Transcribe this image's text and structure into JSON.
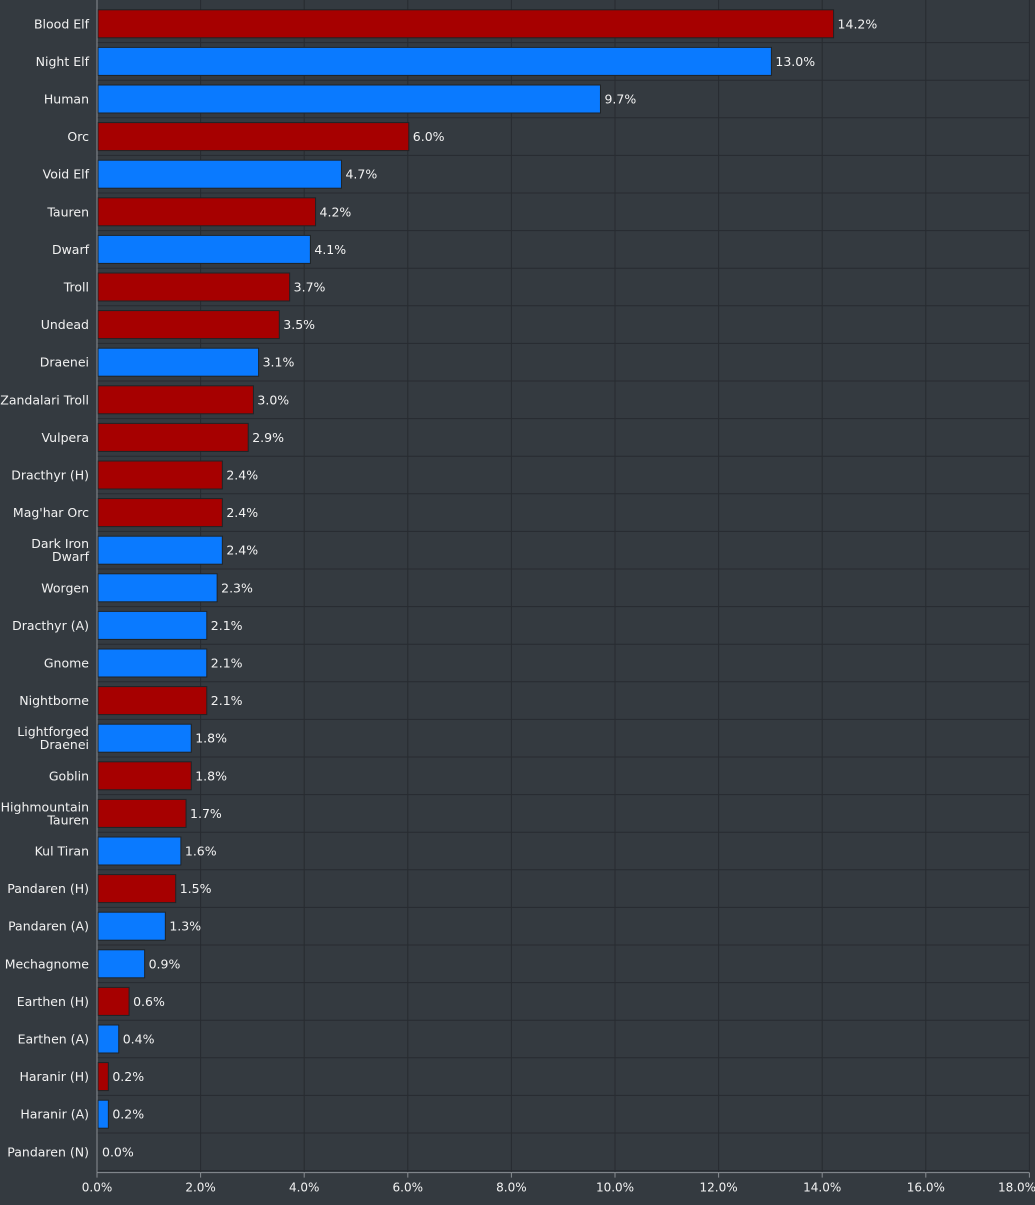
{
  "chart_data": {
    "type": "bar",
    "orientation": "horizontal",
    "title": "",
    "xlabel": "",
    "ylabel": "",
    "xlim": [
      0,
      18
    ],
    "x_ticks": [
      "0.0%",
      "2.0%",
      "4.0%",
      "6.0%",
      "8.0%",
      "10.0%",
      "12.0%",
      "14.0%",
      "16.0%",
      "18.0%"
    ],
    "grid": true,
    "legend": "none",
    "colors": {
      "horde": "#a60000",
      "alliance": "#0a7aff",
      "neutral": "#a60000",
      "background": "#343a40",
      "grid": "#272b30",
      "text": "#f2f2f2"
    },
    "categories": [
      [
        "Blood Elf"
      ],
      [
        "Night Elf"
      ],
      [
        "Human"
      ],
      [
        "Orc"
      ],
      [
        "Void Elf"
      ],
      [
        "Tauren"
      ],
      [
        "Dwarf"
      ],
      [
        "Troll"
      ],
      [
        "Undead"
      ],
      [
        "Draenei"
      ],
      [
        "Zandalari Troll"
      ],
      [
        "Vulpera"
      ],
      [
        "Dracthyr (H)"
      ],
      [
        "Mag'har Orc"
      ],
      [
        "Dark Iron",
        "Dwarf"
      ],
      [
        "Worgen"
      ],
      [
        "Dracthyr (A)"
      ],
      [
        "Gnome"
      ],
      [
        "Nightborne"
      ],
      [
        "Lightforged",
        "Draenei"
      ],
      [
        "Goblin"
      ],
      [
        "Highmountain",
        "Tauren"
      ],
      [
        "Kul Tiran"
      ],
      [
        "Pandaren (H)"
      ],
      [
        "Pandaren (A)"
      ],
      [
        "Mechagnome"
      ],
      [
        "Earthen (H)"
      ],
      [
        "Earthen (A)"
      ],
      [
        "Haranir (H)"
      ],
      [
        "Haranir (A)"
      ],
      [
        "Pandaren (N)"
      ]
    ],
    "values": [
      14.2,
      13.0,
      9.7,
      6.0,
      4.7,
      4.2,
      4.1,
      3.7,
      3.5,
      3.1,
      3.0,
      2.9,
      2.4,
      2.4,
      2.4,
      2.3,
      2.1,
      2.1,
      2.1,
      1.8,
      1.8,
      1.7,
      1.6,
      1.5,
      1.3,
      0.9,
      0.6,
      0.4,
      0.2,
      0.2,
      0.0
    ],
    "value_labels": [
      "14.2%",
      "13.0%",
      "9.7%",
      "6.0%",
      "4.7%",
      "4.2%",
      "4.1%",
      "3.7%",
      "3.5%",
      "3.1%",
      "3.0%",
      "2.9%",
      "2.4%",
      "2.4%",
      "2.4%",
      "2.3%",
      "2.1%",
      "2.1%",
      "2.1%",
      "1.8%",
      "1.8%",
      "1.7%",
      "1.6%",
      "1.5%",
      "1.3%",
      "0.9%",
      "0.6%",
      "0.4%",
      "0.2%",
      "0.2%",
      "0.0%"
    ],
    "factions": [
      "horde",
      "alliance",
      "alliance",
      "horde",
      "alliance",
      "horde",
      "alliance",
      "horde",
      "horde",
      "alliance",
      "horde",
      "horde",
      "horde",
      "horde",
      "alliance",
      "alliance",
      "alliance",
      "alliance",
      "horde",
      "alliance",
      "horde",
      "horde",
      "alliance",
      "horde",
      "alliance",
      "alliance",
      "horde",
      "alliance",
      "horde",
      "alliance",
      "neutral"
    ]
  }
}
